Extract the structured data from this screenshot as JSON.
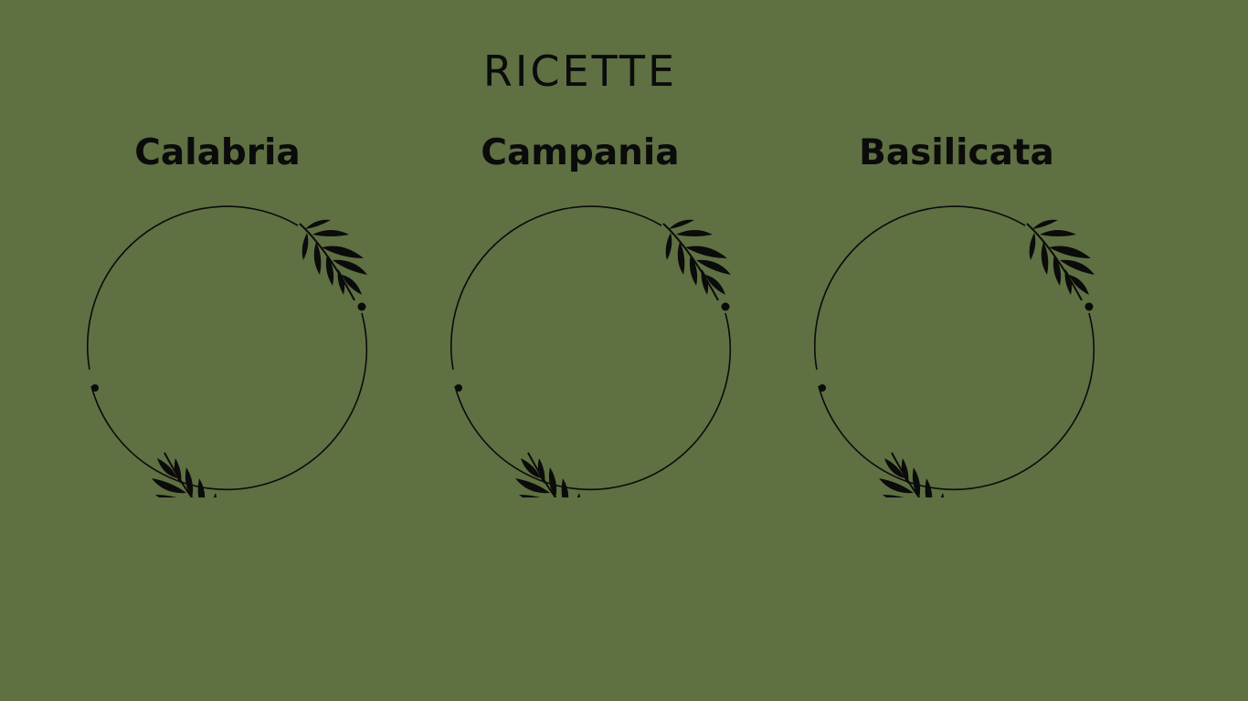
{
  "page": {
    "title": "RICETTE",
    "background_color": "#5f7043",
    "ink_color": "#0b0b0b"
  },
  "regions": [
    {
      "name": "Calabria",
      "icon": "olive-wreath-icon"
    },
    {
      "name": "Campania",
      "icon": "olive-wreath-icon"
    },
    {
      "name": "Basilicata",
      "icon": "olive-wreath-icon"
    }
  ]
}
